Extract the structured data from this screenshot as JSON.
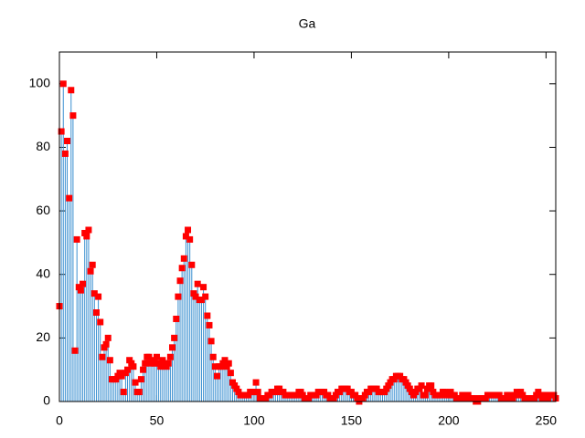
{
  "chart_data": {
    "type": "impulse",
    "title": "Ga",
    "xlim": [
      0,
      255
    ],
    "ylim": [
      0,
      110
    ],
    "xticks": [
      0,
      50,
      100,
      150,
      200,
      250
    ],
    "yticks": [
      0,
      20,
      40,
      60,
      80,
      100
    ],
    "color": "#3a8fd0",
    "point_color": "#ff0000",
    "x": [
      0,
      1,
      2,
      3,
      4,
      5,
      6,
      7,
      8,
      9,
      10,
      11,
      12,
      13,
      14,
      15,
      16,
      17,
      18,
      19,
      20,
      21,
      22,
      23,
      24,
      25,
      26,
      27,
      28,
      29,
      30,
      31,
      32,
      33,
      34,
      35,
      36,
      37,
      38,
      39,
      40,
      41,
      42,
      43,
      44,
      45,
      46,
      47,
      48,
      49,
      50,
      51,
      52,
      53,
      54,
      55,
      56,
      57,
      58,
      59,
      60,
      61,
      62,
      63,
      64,
      65,
      66,
      67,
      68,
      69,
      70,
      71,
      72,
      73,
      74,
      75,
      76,
      77,
      78,
      79,
      80,
      81,
      82,
      83,
      84,
      85,
      86,
      87,
      88,
      89,
      90,
      91,
      92,
      93,
      94,
      95,
      96,
      97,
      98,
      99,
      100,
      101,
      102,
      103,
      104,
      105,
      106,
      107,
      108,
      109,
      110,
      111,
      112,
      113,
      114,
      115,
      116,
      117,
      118,
      119,
      120,
      121,
      122,
      123,
      124,
      125,
      126,
      127,
      128,
      129,
      130,
      131,
      132,
      133,
      134,
      135,
      136,
      137,
      138,
      139,
      140,
      141,
      142,
      143,
      144,
      145,
      146,
      147,
      148,
      149,
      150,
      151,
      152,
      153,
      154,
      155,
      156,
      157,
      158,
      159,
      160,
      161,
      162,
      163,
      164,
      165,
      166,
      167,
      168,
      169,
      170,
      171,
      172,
      173,
      174,
      175,
      176,
      177,
      178,
      179,
      180,
      181,
      182,
      183,
      184,
      185,
      186,
      187,
      188,
      189,
      190,
      191,
      192,
      193,
      194,
      195,
      196,
      197,
      198,
      199,
      200,
      201,
      202,
      203,
      204,
      205,
      206,
      207,
      208,
      209,
      210,
      211,
      212,
      213,
      214,
      215,
      216,
      217,
      218,
      219,
      220,
      221,
      222,
      223,
      224,
      225,
      226,
      227,
      228,
      229,
      230,
      231,
      232,
      233,
      234,
      235,
      236,
      237,
      238,
      239,
      240,
      241,
      242,
      243,
      244,
      245,
      246,
      247,
      248,
      249,
      250,
      251,
      252,
      253,
      254,
      255
    ],
    "values": [
      30,
      85,
      100,
      78,
      82,
      64,
      98,
      90,
      16,
      51,
      36,
      35,
      37,
      53,
      52,
      54,
      41,
      43,
      34,
      28,
      33,
      25,
      14,
      17,
      18,
      20,
      13,
      7,
      7,
      7,
      8,
      9,
      8,
      3,
      9,
      10,
      13,
      12,
      11,
      6,
      3,
      3,
      7,
      10,
      12,
      14,
      14,
      12,
      13,
      12,
      14,
      12,
      11,
      13,
      12,
      11,
      12,
      14,
      17,
      20,
      26,
      33,
      38,
      42,
      45,
      52,
      54,
      51,
      43,
      34,
      33,
      37,
      32,
      32,
      36,
      33,
      27,
      24,
      19,
      14,
      11,
      8,
      11,
      11,
      12,
      13,
      11,
      12,
      9,
      6,
      5,
      4,
      3,
      2,
      2,
      2,
      2,
      2,
      3,
      3,
      3,
      6,
      3,
      1,
      1,
      1,
      1,
      2,
      2,
      3,
      3,
      3,
      4,
      4,
      3,
      3,
      2,
      2,
      2,
      2,
      2,
      2,
      2,
      3,
      3,
      2,
      1,
      1,
      1,
      2,
      2,
      2,
      2,
      3,
      3,
      3,
      3,
      2,
      2,
      1,
      1,
      1,
      2,
      3,
      3,
      4,
      4,
      4,
      4,
      3,
      3,
      2,
      2,
      1,
      0,
      1,
      1,
      2,
      3,
      3,
      4,
      4,
      4,
      4,
      3,
      3,
      3,
      3,
      4,
      5,
      6,
      7,
      7,
      8,
      8,
      8,
      7,
      7,
      6,
      5,
      4,
      3,
      2,
      3,
      4,
      4,
      5,
      2,
      2,
      4,
      5,
      5,
      3,
      2,
      2,
      2,
      2,
      3,
      3,
      2,
      2,
      3,
      2,
      2,
      1,
      1,
      1,
      2,
      1,
      1,
      2,
      1,
      1,
      1,
      0,
      0,
      1,
      1,
      1,
      1,
      2,
      2,
      2,
      2,
      2,
      2,
      2,
      1,
      1,
      1,
      2,
      2,
      1,
      1,
      2,
      3,
      2,
      3,
      2,
      1,
      1,
      1,
      1,
      1,
      1,
      2,
      3,
      2,
      1,
      2,
      2,
      1,
      2,
      2,
      2,
      1
    ]
  }
}
